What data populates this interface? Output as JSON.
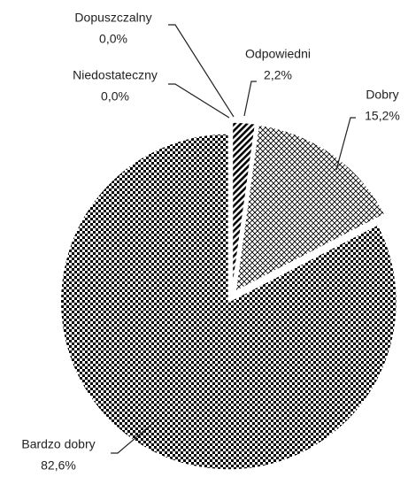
{
  "chart_data": {
    "type": "pie",
    "categories": [
      "Niedostateczny",
      "Dopuszczalny",
      "Odpowiedni",
      "Dobry",
      "Bardzo dobry"
    ],
    "values": [
      0,
      0,
      2.2,
      15.2,
      82.6
    ],
    "value_labels": [
      "0,0%",
      "0,0%",
      "2,2%",
      "15,2%",
      "82,6%"
    ]
  }
}
